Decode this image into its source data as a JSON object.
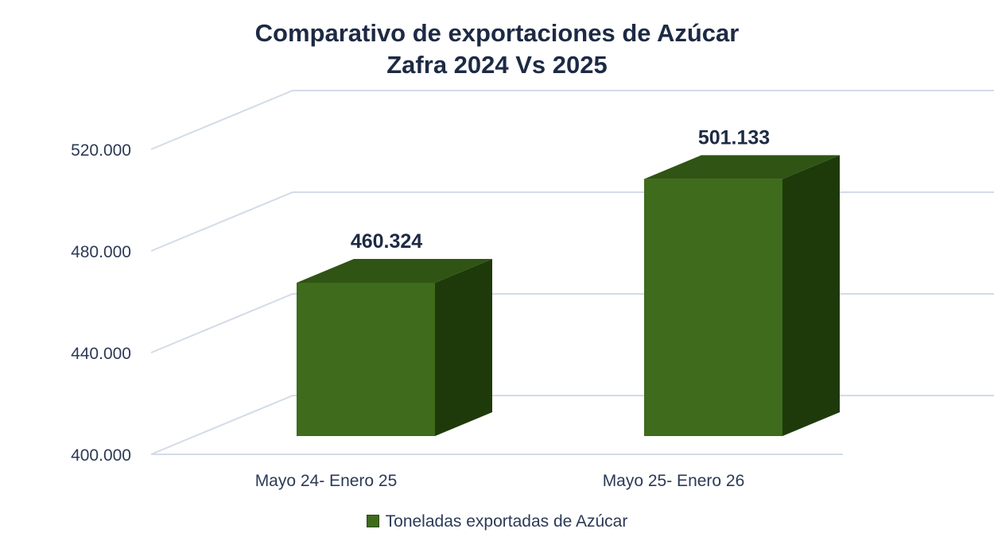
{
  "chart_data": {
    "type": "bar",
    "title": "Comparativo de exportaciones de Azúcar",
    "subtitle": "Zafra 2024 Vs 2025",
    "categories": [
      "Mayo 24- Enero 25",
      "Mayo 25- Enero 26"
    ],
    "series": [
      {
        "name": "Toneladas exportadas de Azúcar",
        "values": [
          460324,
          501133
        ],
        "value_labels": [
          "460.324",
          "501.133"
        ]
      }
    ],
    "ylim": [
      400000,
      520000
    ],
    "yticks": [
      400000,
      440000,
      480000,
      520000
    ],
    "ytick_labels": [
      "400.000",
      "440.000",
      "480.000",
      "520.000"
    ],
    "xlabel": "",
    "ylabel": "",
    "grid": true,
    "legend": "bottom",
    "style": "3d-column",
    "colors": {
      "front": "#3e6b1c",
      "top": "#2f5414",
      "side": "#1e3a0a",
      "grid": "#d3dbe8"
    }
  }
}
